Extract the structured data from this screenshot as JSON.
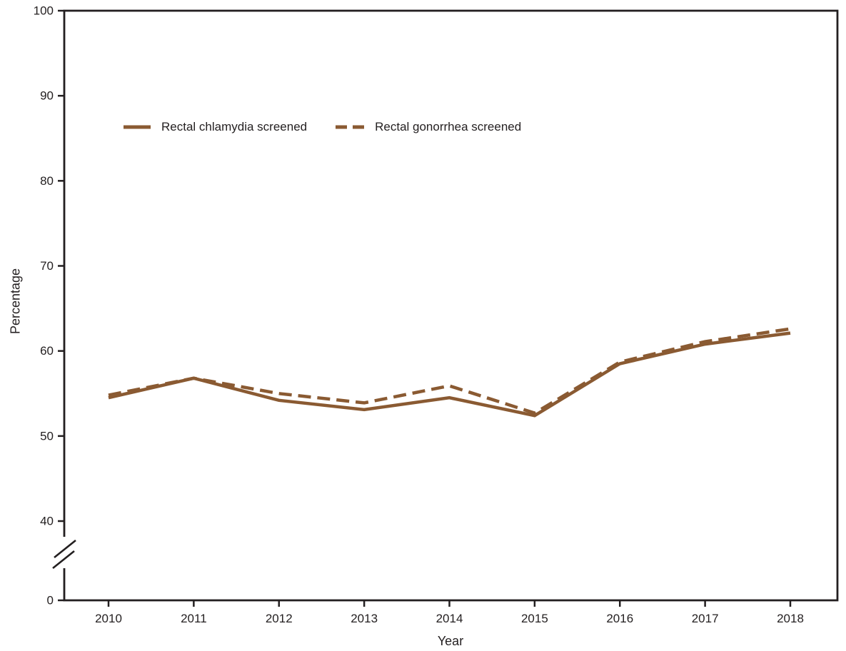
{
  "chart_data": {
    "type": "line",
    "title": "",
    "xlabel": "Year",
    "ylabel": "Percentage",
    "x": [
      2010,
      2011,
      2012,
      2013,
      2014,
      2015,
      2016,
      2017,
      2018
    ],
    "y_ticks": [
      0,
      40,
      50,
      60,
      70,
      80,
      90,
      100
    ],
    "ylim": [
      0,
      100
    ],
    "y_axis_break_between": [
      0,
      40
    ],
    "grid": false,
    "legend_position": "upper-left-inset",
    "line_color": "#8A5A32",
    "axis_color": "#231F20",
    "series": [
      {
        "name": "Rectal chlamydia screened",
        "line_style": "solid",
        "values": [
          54.5,
          56.8,
          54.2,
          53.1,
          54.5,
          52.4,
          58.5,
          60.8,
          62.1
        ]
      },
      {
        "name": "Rectal gonorrhea screened",
        "line_style": "dashed",
        "values": [
          54.8,
          56.8,
          55.0,
          53.9,
          55.9,
          52.7,
          58.7,
          61.1,
          62.6
        ]
      }
    ]
  }
}
